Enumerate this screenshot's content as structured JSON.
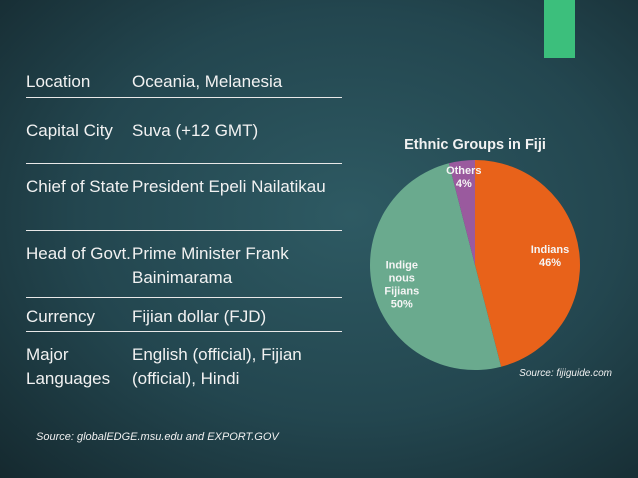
{
  "table": {
    "rows": [
      [
        "Location",
        "Oceania, Melanesia"
      ],
      [
        "Capital City",
        "Suva (+12 GMT)"
      ],
      [
        "Chief of State",
        "President Epeli Nailatikau"
      ],
      [
        "Head of Govt.",
        "Prime Minister Frank Bainimarama"
      ],
      [
        "Currency",
        "Fijian dollar (FJD)"
      ],
      [
        "Major Languages",
        "English (official), Fijian (official), Hindi"
      ]
    ]
  },
  "source": "Source: globalEDGE.msu.edu and EXPORT.GOV",
  "chart_data": {
    "type": "pie",
    "title": "Ethnic Groups in Fiji",
    "categories": [
      "Indians",
      "Indige nous Fijians",
      "Others"
    ],
    "values": [
      46,
      50,
      4
    ],
    "value_labels": [
      "46%",
      "50%",
      "4%"
    ],
    "colors": [
      "#e8621a",
      "#6aaa8e",
      "#9a5a9e"
    ],
    "source": "Source: fijiguide.com"
  }
}
